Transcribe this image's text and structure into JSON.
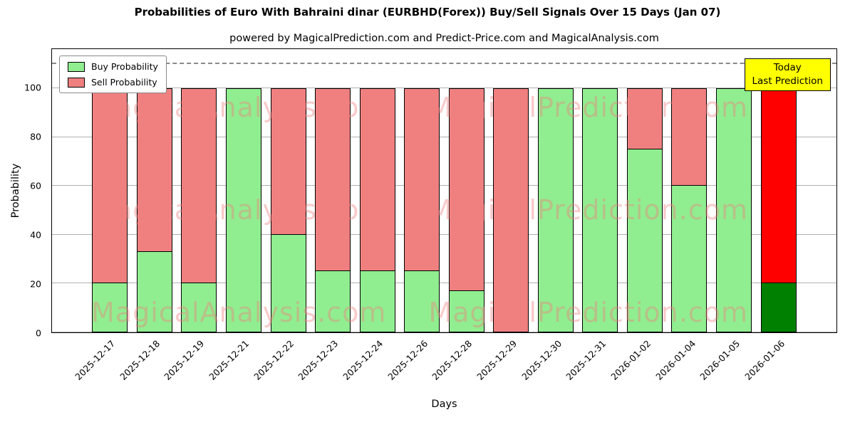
{
  "chart": {
    "title": "Probabilities of Euro With Bahraini dinar (EURBHD(Forex)) Buy/Sell Signals Over 15 Days (Jan 07)",
    "subtitle": "powered by MagicalPrediction.com and Predict-Price.com and MagicalAnalysis.com",
    "xlabel": "Days",
    "ylabel": "Probability",
    "watermarks": [
      "MagicalAnalysis.com",
      "MagicalPrediction.com"
    ],
    "legend": [
      {
        "label": "Buy Probability"
      },
      {
        "label": "Sell Probability"
      }
    ],
    "annotation_box": {
      "lines": [
        "Today",
        "Last Prediction"
      ],
      "bg": "#ffff00"
    }
  },
  "chart_data": {
    "type": "bar",
    "stacked": true,
    "title": "Probabilities of Euro With Bahraini dinar (EURBHD(Forex)) Buy/Sell Signals Over 15 Days (Jan 07)",
    "xlabel": "Days",
    "ylabel": "Probability",
    "categories": [
      "2025-12-17",
      "2025-12-18",
      "2025-12-19",
      "2025-12-21",
      "2025-12-22",
      "2025-12-23",
      "2025-12-24",
      "2025-12-26",
      "2025-12-28",
      "2025-12-29",
      "2025-12-30",
      "2025-12-31",
      "2026-01-02",
      "2026-01-04",
      "2026-01-05",
      "2026-01-06"
    ],
    "series": [
      {
        "name": "Buy Probability",
        "color": "#90ee90",
        "values": [
          20,
          33,
          20,
          100,
          40,
          25,
          25,
          25,
          17,
          0,
          100,
          100,
          75,
          60,
          100,
          20
        ]
      },
      {
        "name": "Sell Probability",
        "color": "#f08080",
        "values": [
          80,
          67,
          80,
          0,
          60,
          75,
          75,
          75,
          83,
          100,
          0,
          0,
          25,
          40,
          0,
          80
        ]
      }
    ],
    "highlight_last_bar": {
      "buy_color": "#008000",
      "sell_color": "#ff0000"
    },
    "yticks": [
      0,
      20,
      40,
      60,
      80,
      100
    ],
    "ylim": [
      0,
      116
    ],
    "dashed_line_y": 110,
    "grid": true,
    "legend_position": "upper left"
  }
}
